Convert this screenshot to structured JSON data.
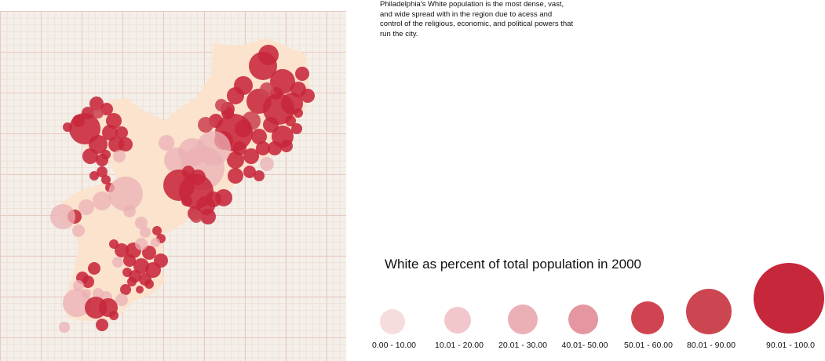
{
  "description": "Philadelphia's White population is the most dense, vast, and wide spread with in the region due to acess and control of the religious, economic, and political powers that run the city.",
  "legend": {
    "title": "White as percent of total population in 2000",
    "classes": [
      {
        "label": "0.00 - 10.00",
        "range": [
          0,
          10
        ],
        "color": "#f7dcdd"
      },
      {
        "label": "10.01 - 20.00",
        "range": [
          10.01,
          20
        ],
        "color": "#f2c7cb"
      },
      {
        "label": "20.01 - 30.00",
        "range": [
          20.01,
          30
        ],
        "color": "#ebb0b5"
      },
      {
        "label": "40.01- 50.00",
        "range": [
          40.01,
          50
        ],
        "color": "#e497a0"
      },
      {
        "label": "50.01 - 60.00",
        "range": [
          50.01,
          60
        ],
        "color": "#cf4450"
      },
      {
        "label": "80.01 - 90.00",
        "range": [
          80.01,
          90
        ],
        "color": "#cc4652"
      },
      {
        "label": "90.01 - 100.0",
        "range": [
          90.01,
          100
        ],
        "color": "#c7273a"
      }
    ]
  },
  "map": {
    "land_color": "#fbe3cd",
    "grid_color": "#e8c9c2"
  }
}
